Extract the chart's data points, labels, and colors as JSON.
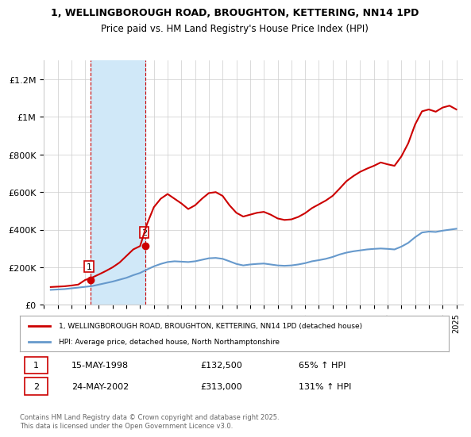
{
  "title": "1, WELLINGBOROUGH ROAD, BROUGHTON, KETTERING, NN14 1PD",
  "subtitle": "Price paid vs. HM Land Registry's House Price Index (HPI)",
  "ylabel_ticks": [
    "£0",
    "£200K",
    "£400K",
    "£600K",
    "£800K",
    "£1M",
    "£1.2M"
  ],
  "ytick_values": [
    0,
    200000,
    400000,
    600000,
    800000,
    1000000,
    1200000
  ],
  "ylim": [
    0,
    1300000
  ],
  "sale_dates": [
    "1998-05-15",
    "2002-05-24"
  ],
  "sale_prices": [
    132500,
    313000
  ],
  "sale_labels": [
    "1",
    "2"
  ],
  "sale_label1": "15-MAY-1998",
  "sale_price1": "£132,500",
  "sale_pct1": "65% ↑ HPI",
  "sale_label2": "24-MAY-2002",
  "sale_price2": "£313,000",
  "sale_pct2": "131% ↑ HPI",
  "legend_line1": "1, WELLINGBOROUGH ROAD, BROUGHTON, KETTERING, NN14 1PD (detached house)",
  "legend_line2": "HPI: Average price, detached house, North Northamptonshire",
  "footnote": "Contains HM Land Registry data © Crown copyright and database right 2025.\nThis data is licensed under the Open Government Licence v3.0.",
  "line_color_red": "#cc0000",
  "line_color_blue": "#6699cc",
  "shade_color": "#d0e8f8",
  "grid_color": "#cccccc",
  "background_color": "#ffffff",
  "hpi_x": [
    1995.5,
    1996.0,
    1996.5,
    1997.0,
    1997.5,
    1998.0,
    1998.5,
    1999.0,
    1999.5,
    2000.0,
    2000.5,
    2001.0,
    2001.5,
    2002.0,
    2002.5,
    2003.0,
    2003.5,
    2004.0,
    2004.5,
    2005.0,
    2005.5,
    2006.0,
    2006.5,
    2007.0,
    2007.5,
    2008.0,
    2008.5,
    2009.0,
    2009.5,
    2010.0,
    2010.5,
    2011.0,
    2011.5,
    2012.0,
    2012.5,
    2013.0,
    2013.5,
    2014.0,
    2014.5,
    2015.0,
    2015.5,
    2016.0,
    2016.5,
    2017.0,
    2017.5,
    2018.0,
    2018.5,
    2019.0,
    2019.5,
    2020.0,
    2020.5,
    2021.0,
    2021.5,
    2022.0,
    2022.5,
    2023.0,
    2023.5,
    2024.0,
    2024.5,
    2025.0
  ],
  "hpi_y": [
    80000,
    82000,
    84000,
    88000,
    92000,
    96000,
    100000,
    108000,
    116000,
    124000,
    134000,
    144000,
    158000,
    170000,
    188000,
    205000,
    218000,
    228000,
    232000,
    230000,
    228000,
    232000,
    240000,
    248000,
    250000,
    245000,
    232000,
    218000,
    210000,
    215000,
    218000,
    220000,
    215000,
    210000,
    208000,
    210000,
    215000,
    222000,
    232000,
    238000,
    245000,
    255000,
    268000,
    278000,
    285000,
    290000,
    295000,
    298000,
    300000,
    298000,
    295000,
    310000,
    330000,
    360000,
    385000,
    390000,
    388000,
    395000,
    400000,
    405000
  ],
  "price_x": [
    1995.5,
    1996.0,
    1996.5,
    1997.0,
    1997.5,
    1998.0,
    1998.5,
    1999.0,
    1999.5,
    2000.0,
    2000.5,
    2001.0,
    2001.5,
    2002.0,
    2002.5,
    2003.0,
    2003.5,
    2004.0,
    2004.5,
    2005.0,
    2005.5,
    2006.0,
    2006.5,
    2007.0,
    2007.5,
    2008.0,
    2008.5,
    2009.0,
    2009.5,
    2010.0,
    2010.5,
    2011.0,
    2011.5,
    2012.0,
    2012.5,
    2013.0,
    2013.5,
    2014.0,
    2014.5,
    2015.0,
    2015.5,
    2016.0,
    2016.5,
    2017.0,
    2017.5,
    2018.0,
    2018.5,
    2019.0,
    2019.5,
    2020.0,
    2020.5,
    2021.0,
    2021.5,
    2022.0,
    2022.5,
    2023.0,
    2023.5,
    2024.0,
    2024.5,
    2025.0
  ],
  "price_y": [
    95000,
    97000,
    99000,
    103000,
    108000,
    132500,
    145000,
    162000,
    180000,
    200000,
    225000,
    260000,
    295000,
    313000,
    430000,
    520000,
    565000,
    590000,
    565000,
    540000,
    510000,
    530000,
    565000,
    595000,
    600000,
    580000,
    530000,
    490000,
    470000,
    480000,
    490000,
    495000,
    480000,
    460000,
    452000,
    455000,
    468000,
    488000,
    515000,
    535000,
    555000,
    580000,
    618000,
    658000,
    685000,
    708000,
    725000,
    740000,
    758000,
    748000,
    740000,
    790000,
    860000,
    960000,
    1030000,
    1040000,
    1028000,
    1050000,
    1060000,
    1040000
  ],
  "xlim_left": 1995.3,
  "xlim_right": 2025.5,
  "xtick_years": [
    1995,
    1996,
    1997,
    1998,
    1999,
    2000,
    2001,
    2002,
    2003,
    2004,
    2005,
    2006,
    2007,
    2008,
    2009,
    2010,
    2011,
    2012,
    2013,
    2014,
    2015,
    2016,
    2017,
    2018,
    2019,
    2020,
    2021,
    2022,
    2023,
    2024,
    2025
  ],
  "shade_x1": 1998.37,
  "shade_x2": 2002.38,
  "marker_x1": 1998.37,
  "marker_y1": 132500,
  "marker_x2": 2002.38,
  "marker_y2": 313000
}
